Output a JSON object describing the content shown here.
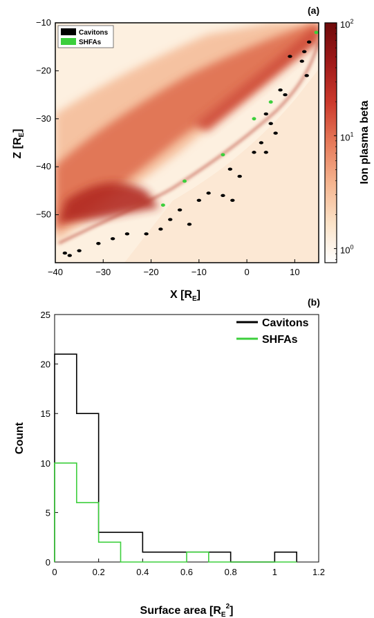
{
  "chart_data": [
    {
      "type": "heatmap",
      "panel_label": "(a)",
      "xlabel": "X [R",
      "xlabel_sub": "E",
      "ylabel": "Z [R",
      "ylabel_sub": "E",
      "xlim": [
        -40,
        15
      ],
      "ylim": [
        -60,
        -10
      ],
      "x_ticks": [
        -40,
        -30,
        -20,
        -10,
        0,
        10
      ],
      "x_tick_labels": [
        "−40",
        "−30",
        "−20",
        "−10",
        "0",
        "10"
      ],
      "y_ticks": [
        -10,
        -20,
        -30,
        -40,
        -50
      ],
      "y_tick_labels": [
        "−10",
        "−20",
        "−30",
        "−40",
        "−50"
      ],
      "colorbar": {
        "label": "Ion plasma beta",
        "scale": "log",
        "range": [
          0.75,
          100
        ],
        "ticks": [
          1,
          10,
          100
        ],
        "tick_bases": [
          "10",
          "10",
          "10"
        ],
        "tick_exponents": [
          "0",
          "1",
          "2"
        ],
        "colors": [
          "#ffffff",
          "#fbe2c7",
          "#f5b48f",
          "#e67a5a",
          "#cc3a2d",
          "#a01a1a",
          "#6e0a0a"
        ]
      },
      "legend": {
        "placement": "top-left",
        "entries": [
          {
            "name": "Cavitons",
            "color": "#000000"
          },
          {
            "name": "SHFAs",
            "color": "#3ccf3c"
          }
        ]
      },
      "caviton_patches": [
        [
          13,
          -14
        ],
        [
          12,
          -16
        ],
        [
          11.5,
          -18
        ],
        [
          12.5,
          -21
        ],
        [
          9,
          -17
        ],
        [
          7,
          -24
        ],
        [
          8,
          -25
        ],
        [
          4,
          -29
        ],
        [
          5,
          -31
        ],
        [
          6,
          -33
        ],
        [
          3,
          -35
        ],
        [
          1.5,
          -37
        ],
        [
          4,
          -37
        ],
        [
          -3.5,
          -40.5
        ],
        [
          -1.5,
          -42
        ],
        [
          -5,
          -46
        ],
        [
          -3,
          -47
        ],
        [
          -8,
          -45.5
        ],
        [
          -10,
          -47
        ],
        [
          -14,
          -49
        ],
        [
          -16,
          -51
        ],
        [
          -18,
          -53
        ],
        [
          -12,
          -52
        ],
        [
          -21,
          -54
        ],
        [
          -25,
          -54
        ],
        [
          -28,
          -55
        ],
        [
          -31,
          -56
        ],
        [
          -35,
          -57.5
        ],
        [
          -37,
          -58.5
        ],
        [
          -38,
          -58
        ]
      ],
      "shfa_patches": [
        [
          14.5,
          -12
        ],
        [
          5,
          -26.5
        ],
        [
          1.5,
          -30
        ],
        [
          -5,
          -37.5
        ],
        [
          -13,
          -43
        ],
        [
          -17.5,
          -48
        ]
      ]
    },
    {
      "type": "histogram",
      "panel_label": "(b)",
      "xlabel": "Surface area [R",
      "xlabel_sub": "E",
      "xlabel_sup": "2",
      "xlabel_end": "]",
      "ylabel": "Count",
      "xlim": [
        0,
        1.2
      ],
      "ylim": [
        0,
        25
      ],
      "x_ticks": [
        0,
        0.2,
        0.4,
        0.6,
        0.8,
        1,
        1.2
      ],
      "x_tick_labels": [
        "0",
        "0.2",
        "0.4",
        "0.6",
        "0.8",
        "1",
        "1.2"
      ],
      "y_ticks": [
        0,
        5,
        10,
        15,
        20,
        25
      ],
      "y_tick_labels": [
        "0",
        "5",
        "10",
        "15",
        "20",
        "25"
      ],
      "bin_edges": [
        0,
        0.1,
        0.2,
        0.3,
        0.4,
        0.5,
        0.6,
        0.7,
        0.8,
        0.9,
        1.0,
        1.1
      ],
      "legend": {
        "placement": "top-right"
      },
      "series": [
        {
          "name": "Cavitons",
          "color": "#000000",
          "counts": [
            21,
            15,
            3,
            3,
            1,
            1,
            1,
            1,
            0,
            0,
            1
          ]
        },
        {
          "name": "SHFAs",
          "color": "#3ccf3c",
          "counts": [
            10,
            6,
            2,
            0,
            0,
            0,
            1,
            0,
            0,
            0,
            0
          ]
        }
      ]
    }
  ]
}
